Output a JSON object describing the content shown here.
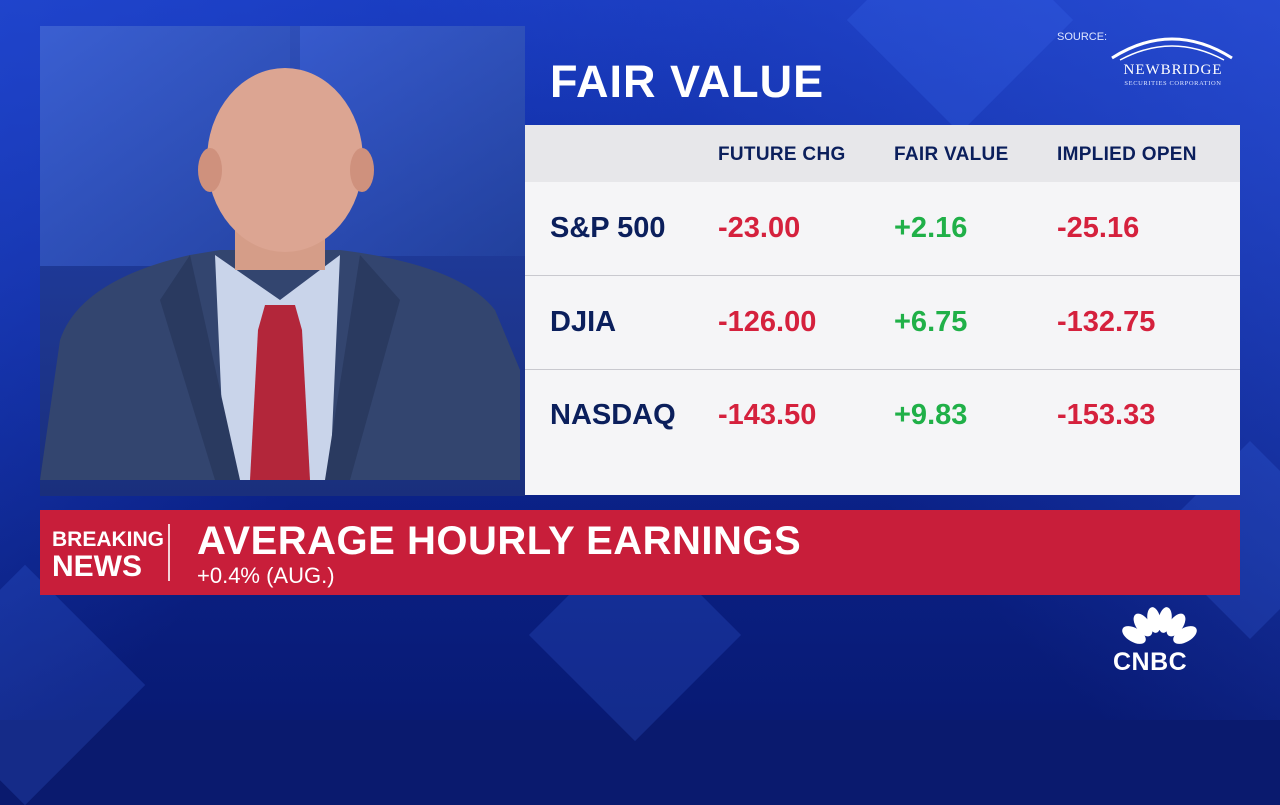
{
  "graphic": {
    "title": "FAIR VALUE",
    "source_label": "SOURCE:",
    "source_logo": {
      "name": "NEWBRIDGE",
      "sub": "SECURITIES CORPORATION"
    },
    "columns": [
      "FUTURE CHG",
      "FAIR VALUE",
      "IMPLIED OPEN"
    ],
    "rows": [
      {
        "label": "S&P 500",
        "future_chg": "-23.00",
        "fair_value": "+2.16",
        "implied_open": "-25.16"
      },
      {
        "label": "DJIA",
        "future_chg": "-126.00",
        "fair_value": "+6.75",
        "implied_open": "-132.75"
      },
      {
        "label": "NASDAQ",
        "future_chg": "-143.50",
        "fair_value": "+9.83",
        "implied_open": "-153.33"
      }
    ]
  },
  "breaking": {
    "tag_line1": "BREAKING",
    "tag_line2": "NEWS",
    "headline": "AVERAGE HOURLY EARNINGS",
    "subline": "+0.4% (AUG.)"
  },
  "network": {
    "logo_text": "CNBC"
  },
  "colors": {
    "negative": "#d5213d",
    "positive": "#20b048",
    "banner": "#c81e3a",
    "navy": "#0b1f5c"
  }
}
